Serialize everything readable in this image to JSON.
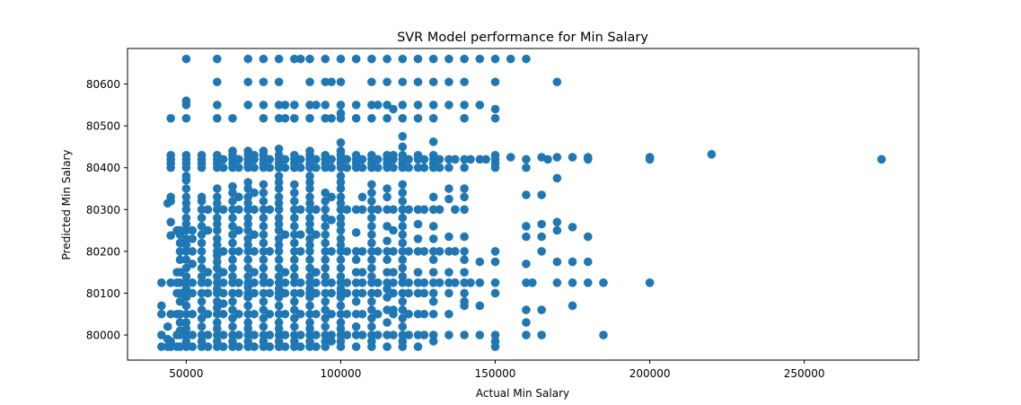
{
  "chart_data": {
    "type": "scatter",
    "title": "SVR Model performance for Min Salary",
    "xlabel": "Actual Min Salary",
    "ylabel": "Predicted Min Salary",
    "xlim": [
      31000,
      287000
    ],
    "ylim": [
      79940,
      80685
    ],
    "xticks": [
      50000,
      100000,
      150000,
      200000,
      250000
    ],
    "yticks": [
      80000,
      80100,
      80200,
      80300,
      80400,
      80500,
      80600
    ],
    "grid": false,
    "legend": "none",
    "colors": {
      "points": "#1f77b4"
    },
    "columns": [
      {
        "x": 42000,
        "ys": [
          79972,
          80000,
          80050,
          80070,
          80125
        ]
      },
      {
        "x": 44000,
        "ys": [
          79972,
          79990,
          80020,
          80315
        ]
      },
      {
        "x": 45000,
        "ys": [
          79972,
          79985,
          80050,
          80125,
          80238,
          80270,
          80320,
          80330,
          80400,
          80410,
          80420,
          80430,
          80518
        ]
      },
      {
        "x": 47000,
        "ys": [
          79972,
          80000,
          80050,
          80100,
          80125,
          80150,
          80250
        ]
      },
      {
        "x": 48000,
        "ys": [
          79972,
          80000,
          80010,
          80030,
          80050,
          80080,
          80100,
          80125,
          80150,
          80180,
          80200,
          80220,
          80240,
          80250
        ]
      },
      {
        "x": 50000,
        "ys": [
          79972,
          79985,
          80000,
          80015,
          80030,
          80050,
          80070,
          80090,
          80100,
          80110,
          80125,
          80140,
          80160,
          80180,
          80200,
          80215,
          80230,
          80250,
          80265,
          80280,
          80300,
          80315,
          80330,
          80350,
          80370,
          80380,
          80400,
          80410,
          80420,
          80430,
          80518,
          80550,
          80560,
          80660
        ]
      },
      {
        "x": 52000,
        "ys": [
          79972,
          80000,
          80050,
          80100,
          80125,
          80170,
          80200,
          80230,
          80250
        ]
      },
      {
        "x": 55000,
        "ys": [
          79972,
          79985,
          80000,
          80020,
          80040,
          80060,
          80080,
          80100,
          80125,
          80140,
          80160,
          80180,
          80200,
          80220,
          80240,
          80260,
          80280,
          80300,
          80320,
          80330,
          80400,
          80410,
          80420,
          80430
        ]
      },
      {
        "x": 57000,
        "ys": [
          79972,
          80000,
          80050,
          80100,
          80125,
          80150,
          80250,
          80300
        ]
      },
      {
        "x": 60000,
        "ys": [
          79972,
          79985,
          80000,
          80015,
          80030,
          80050,
          80065,
          80080,
          80100,
          80110,
          80125,
          80140,
          80160,
          80175,
          80190,
          80200,
          80215,
          80230,
          80250,
          80265,
          80280,
          80300,
          80315,
          80330,
          80350,
          80400,
          80410,
          80420,
          80430,
          80518,
          80550,
          80605,
          80660
        ]
      },
      {
        "x": 62000,
        "ys": [
          79972,
          80000,
          80050,
          80075,
          80100,
          80125,
          80150,
          80200,
          80300,
          80400,
          80420
        ]
      },
      {
        "x": 65000,
        "ys": [
          79972,
          79985,
          80000,
          80020,
          80040,
          80060,
          80080,
          80100,
          80125,
          80140,
          80160,
          80180,
          80200,
          80220,
          80240,
          80260,
          80280,
          80300,
          80320,
          80340,
          80355,
          80400,
          80410,
          80420,
          80430,
          80440,
          80518
        ]
      },
      {
        "x": 67000,
        "ys": [
          79972,
          80000,
          80050,
          80100,
          80125,
          80200,
          80250,
          80300,
          80330,
          80400,
          80420
        ]
      },
      {
        "x": 70000,
        "ys": [
          79972,
          79985,
          80000,
          80015,
          80030,
          80050,
          80070,
          80090,
          80100,
          80115,
          80125,
          80140,
          80160,
          80180,
          80200,
          80215,
          80230,
          80250,
          80265,
          80280,
          80300,
          80315,
          80330,
          80350,
          80365,
          80400,
          80410,
          80420,
          80430,
          80440,
          80550,
          80605,
          80660
        ]
      },
      {
        "x": 72000,
        "ys": [
          79972,
          80000,
          80050,
          80100,
          80125,
          80150,
          80200,
          80240,
          80300,
          80340,
          80400,
          80420,
          80430
        ]
      },
      {
        "x": 75000,
        "ys": [
          79972,
          79985,
          80000,
          80020,
          80040,
          80060,
          80080,
          80100,
          80125,
          80140,
          80160,
          80180,
          80200,
          80220,
          80240,
          80260,
          80280,
          80300,
          80320,
          80340,
          80360,
          80400,
          80410,
          80420,
          80430,
          80440,
          80518,
          80550,
          80605,
          80660
        ]
      },
      {
        "x": 77000,
        "ys": [
          79972,
          80000,
          80050,
          80100,
          80125,
          80200,
          80300,
          80400,
          80420
        ]
      },
      {
        "x": 80000,
        "ys": [
          79972,
          79985,
          80000,
          80015,
          80030,
          80050,
          80070,
          80090,
          80100,
          80110,
          80125,
          80140,
          80160,
          80180,
          80200,
          80215,
          80230,
          80250,
          80265,
          80280,
          80300,
          80315,
          80330,
          80350,
          80365,
          80380,
          80400,
          80410,
          80420,
          80430,
          80445,
          80518,
          80550,
          80605,
          80660
        ]
      },
      {
        "x": 82000,
        "ys": [
          79972,
          80000,
          80050,
          80100,
          80125,
          80150,
          80240,
          80400,
          80420,
          80518,
          80550
        ]
      },
      {
        "x": 85000,
        "ys": [
          79972,
          79985,
          80000,
          80020,
          80040,
          80060,
          80080,
          80100,
          80125,
          80140,
          80160,
          80180,
          80200,
          80220,
          80240,
          80260,
          80280,
          80300,
          80320,
          80340,
          80360,
          80400,
          80410,
          80420,
          80430,
          80518,
          80550,
          80660
        ]
      },
      {
        "x": 87000,
        "ys": [
          79972,
          80000,
          80050,
          80100,
          80125,
          80200,
          80240,
          80300,
          80400,
          80420,
          80660
        ]
      },
      {
        "x": 90000,
        "ys": [
          79972,
          79985,
          80000,
          80015,
          80030,
          80050,
          80070,
          80090,
          80100,
          80110,
          80125,
          80140,
          80160,
          80180,
          80200,
          80215,
          80230,
          80250,
          80265,
          80280,
          80300,
          80315,
          80330,
          80350,
          80365,
          80380,
          80400,
          80410,
          80420,
          80430,
          80440,
          80518,
          80550,
          80605,
          80660
        ]
      },
      {
        "x": 92000,
        "ys": [
          79972,
          80000,
          80050,
          80100,
          80125,
          80150,
          80240,
          80300,
          80400,
          80420,
          80550
        ]
      },
      {
        "x": 95000,
        "ys": [
          79972,
          79985,
          80000,
          80020,
          80040,
          80060,
          80080,
          80100,
          80125,
          80140,
          80160,
          80180,
          80200,
          80220,
          80240,
          80260,
          80280,
          80300,
          80320,
          80340,
          80400,
          80410,
          80420,
          80430,
          80518,
          80550,
          80605,
          80660
        ]
      },
      {
        "x": 97000,
        "ys": [
          79985,
          80000,
          80050,
          80100,
          80125,
          80200,
          80275,
          80330,
          80400,
          80420,
          80518,
          80605
        ]
      },
      {
        "x": 100000,
        "ys": [
          79972,
          79985,
          80000,
          80015,
          80030,
          80050,
          80070,
          80090,
          80100,
          80110,
          80125,
          80140,
          80160,
          80180,
          80200,
          80215,
          80230,
          80250,
          80265,
          80280,
          80300,
          80315,
          80330,
          80350,
          80365,
          80380,
          80400,
          80410,
          80420,
          80430,
          80440,
          80460,
          80518,
          80530,
          80550,
          80605,
          80660
        ]
      },
      {
        "x": 102000,
        "ys": [
          80000,
          80050,
          80100,
          80125,
          80200,
          80300,
          80400,
          80420
        ]
      },
      {
        "x": 105000,
        "ys": [
          79972,
          80000,
          80020,
          80050,
          80080,
          80100,
          80125,
          80150,
          80180,
          80200,
          80245,
          80300,
          80400,
          80410,
          80420,
          80430,
          80518,
          80550,
          80660
        ]
      },
      {
        "x": 107000,
        "ys": [
          80000,
          80050,
          80100,
          80125,
          80150,
          80200,
          80300,
          80330,
          80400,
          80420
        ]
      },
      {
        "x": 110000,
        "ys": [
          79972,
          79985,
          80000,
          80020,
          80040,
          80060,
          80080,
          80100,
          80125,
          80140,
          80160,
          80180,
          80200,
          80220,
          80240,
          80260,
          80280,
          80300,
          80320,
          80340,
          80360,
          80400,
          80410,
          80420,
          80430,
          80518,
          80550,
          80605,
          80660
        ]
      },
      {
        "x": 112000,
        "ys": [
          80000,
          80050,
          80100,
          80125,
          80200,
          80300,
          80400,
          80420,
          80550
        ]
      },
      {
        "x": 115000,
        "ys": [
          79972,
          80000,
          80030,
          80060,
          80090,
          80110,
          80125,
          80150,
          80180,
          80200,
          80225,
          80260,
          80300,
          80330,
          80350,
          80400,
          80410,
          80420,
          80430,
          80518,
          80550,
          80605,
          80660
        ]
      },
      {
        "x": 117000,
        "ys": [
          80000,
          80050,
          80060,
          80100,
          80125,
          80150,
          80200,
          80250,
          80300,
          80400,
          80420,
          80430,
          80540
        ]
      },
      {
        "x": 120000,
        "ys": [
          79972,
          79985,
          80000,
          80020,
          80040,
          80060,
          80080,
          80100,
          80125,
          80140,
          80160,
          80180,
          80200,
          80220,
          80240,
          80260,
          80280,
          80300,
          80320,
          80340,
          80360,
          80400,
          80410,
          80420,
          80430,
          80450,
          80475,
          80518,
          80550,
          80605,
          80660
        ]
      },
      {
        "x": 122000,
        "ys": [
          80000,
          80050,
          80100,
          80125,
          80200,
          80300,
          80400,
          80420
        ]
      },
      {
        "x": 125000,
        "ys": [
          79972,
          80000,
          80050,
          80100,
          80125,
          80150,
          80200,
          80230,
          80265,
          80300,
          80400,
          80420,
          80430,
          80518,
          80550,
          80605,
          80660
        ]
      },
      {
        "x": 127000,
        "ys": [
          80000,
          80050,
          80100,
          80125,
          80200,
          80300,
          80400,
          80420
        ]
      },
      {
        "x": 130000,
        "ys": [
          79985,
          80000,
          80050,
          80080,
          80100,
          80125,
          80150,
          80180,
          80200,
          80230,
          80260,
          80300,
          80330,
          80400,
          80410,
          80420,
          80430,
          80462,
          80518,
          80550,
          80605,
          80660
        ]
      },
      {
        "x": 132000,
        "ys": [
          80125,
          80200,
          80300,
          80400,
          80420
        ]
      },
      {
        "x": 135000,
        "ys": [
          80000,
          80050,
          80100,
          80125,
          80150,
          80200,
          80235,
          80325,
          80350,
          80400,
          80420,
          80550,
          80605,
          80660
        ]
      },
      {
        "x": 137000,
        "ys": [
          80125,
          80200,
          80300,
          80420
        ]
      },
      {
        "x": 140000,
        "ys": [
          80000,
          80070,
          80080,
          80100,
          80125,
          80150,
          80180,
          80200,
          80235,
          80300,
          80330,
          80350,
          80400,
          80420,
          80518,
          80550,
          80605,
          80660
        ]
      },
      {
        "x": 142000,
        "ys": [
          80125,
          80420
        ]
      },
      {
        "x": 145000,
        "ys": [
          80000,
          80070,
          80125,
          80175,
          80420,
          80550,
          80660
        ]
      },
      {
        "x": 147000,
        "ys": [
          80420
        ]
      },
      {
        "x": 150000,
        "ys": [
          79972,
          79985,
          80000,
          80100,
          80125,
          80175,
          80200,
          80400,
          80410,
          80420,
          80430,
          80518,
          80540,
          80605,
          80660
        ]
      },
      {
        "x": 155000,
        "ys": [
          80425,
          80660
        ]
      },
      {
        "x": 160000,
        "ys": [
          80000,
          80030,
          80060,
          80125,
          80170,
          80235,
          80260,
          80335,
          80400,
          80420,
          80660
        ]
      },
      {
        "x": 162000,
        "ys": [
          80125
        ]
      },
      {
        "x": 165000,
        "ys": [
          80000,
          80060,
          80200,
          80235,
          80265,
          80335,
          80425
        ]
      },
      {
        "x": 167000,
        "ys": [
          80420
        ]
      },
      {
        "x": 170000,
        "ys": [
          80125,
          80175,
          80250,
          80270,
          80375,
          80425,
          80605
        ]
      },
      {
        "x": 175000,
        "ys": [
          80070,
          80125,
          80175,
          80258,
          80425
        ]
      },
      {
        "x": 180000,
        "ys": [
          80125,
          80175,
          80235,
          80420,
          80425
        ]
      },
      {
        "x": 185000,
        "ys": [
          80000,
          80125
        ]
      },
      {
        "x": 200000,
        "ys": [
          80125,
          80420,
          80425
        ]
      },
      {
        "x": 220000,
        "ys": [
          80432
        ]
      },
      {
        "x": 275000,
        "ys": [
          80420
        ]
      }
    ]
  }
}
